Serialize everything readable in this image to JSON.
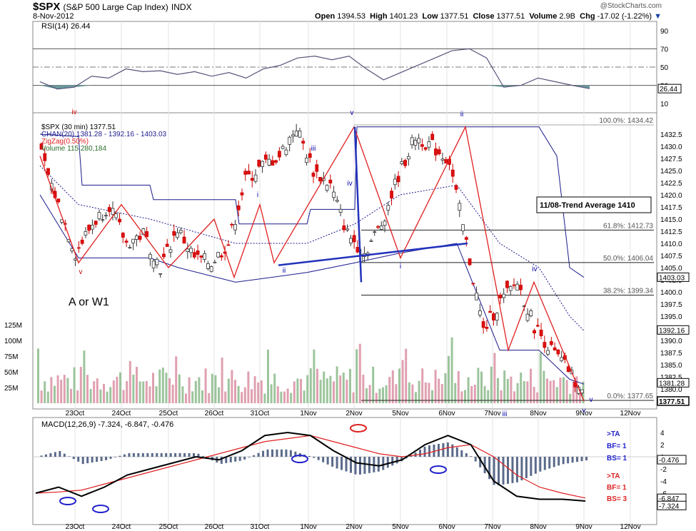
{
  "header": {
    "ticker": "$SPX",
    "name": "(S&P 500 Large Cap Index)",
    "exchange": "INDX",
    "date": "8-Nov-2012",
    "open_label": "Open",
    "open": "1394.53",
    "high_label": "High",
    "high": "1401.23",
    "low_label": "Low",
    "low": "1377.51",
    "close_label": "Close",
    "close": "1377.51",
    "volume_label": "Volume",
    "volume": "2.9B",
    "chg_label": "Chg",
    "chg": "-17.02 (-1.22%)",
    "chg_arrow": "▼",
    "logo": "@StockCharts.com"
  },
  "rsi": {
    "label": "RSI(14) 26.44",
    "current": "26.44",
    "ticks": [
      "90",
      "70",
      "50",
      "30",
      "10"
    ]
  },
  "price": {
    "legend": [
      "$SPX (30 min) 1377.51",
      "CHAN(20) 1381.28 - 1392.16 - 1403.03",
      "ZigZag(0.50%)",
      "Volume 115,280,184"
    ],
    "legend_colors": [
      "#000000",
      "#1a1a8c",
      "#e02020",
      "#2a6e2a"
    ],
    "y_ticks": [
      "1432.5",
      "1430.0",
      "1427.5",
      "1425.0",
      "1422.5",
      "1420.0",
      "1417.5",
      "1415.0",
      "1412.5",
      "1410.0",
      "1407.5",
      "1405.0",
      "1402.5",
      "1400.0",
      "1397.5",
      "1395.0",
      "1392.5",
      "1390.0",
      "1387.5",
      "1385.0",
      "1382.5",
      "1380.0"
    ],
    "price_tags": [
      "1403.03",
      "1392.16",
      "1381.28",
      "1377.51"
    ],
    "vol_ticks": [
      "125M",
      "100M",
      "75M",
      "50M",
      "25M"
    ],
    "fib_levels": [
      {
        "label": "100.0%: 1434.42",
        "price": 1434.42
      },
      {
        "label": "61.8%: 1412.73",
        "price": 1412.73
      },
      {
        "label": "50.0%: 1406.04",
        "price": 1406.04
      },
      {
        "label": "38.2%: 1399.34",
        "price": 1399.34
      },
      {
        "label": "0.0%: 1377.65",
        "price": 1377.65
      }
    ],
    "trend_note": "11/08-Trend Average 1410",
    "wave_text": "A or W1",
    "wave_labels": [
      "iv",
      "iii",
      "v",
      "i",
      "ii",
      "iii",
      "iv",
      "v",
      "i",
      "ii",
      "iv",
      "v",
      "iii",
      "v"
    ],
    "x_labels": [
      "23Oct",
      "24Oct",
      "25Oct",
      "26Oct",
      "31Oct",
      "1Nov",
      "2Nov",
      "5Nov",
      "6Nov",
      "7Nov",
      "8Nov",
      "9Nov",
      "12Nov"
    ]
  },
  "macd": {
    "label": "MACD(12,26,9) -7.324, -6.847, -0.476",
    "ticks": [
      "4",
      "2",
      "0",
      "-2",
      "-4",
      "-6"
    ],
    "tags": [
      "-0.476",
      "-6.847",
      "-7.324"
    ],
    "notes_blue": [
      ">TA",
      "BF= 1",
      "BS= 1"
    ],
    "notes_red": [
      ">TA",
      "BF= 1",
      "BS= 3"
    ],
    "x_labels": [
      "23Oct",
      "24Oct",
      "25Oct",
      "26Oct",
      "31Oct",
      "1Nov",
      "2Nov",
      "5Nov",
      "6Nov",
      "7Nov",
      "8Nov",
      "9Nov",
      "12Nov"
    ]
  },
  "chart_data": {
    "type": "line",
    "title": "$SPX (S&P 500 Large Cap Index) INDX",
    "series_name": "$SPX (30 min)",
    "categories": [
      "23Oct",
      "24Oct",
      "25Oct",
      "26Oct",
      "31Oct",
      "1Nov",
      "2Nov",
      "5Nov",
      "6Nov",
      "7Nov",
      "8Nov"
    ],
    "close_path": [
      1428,
      1418,
      1408,
      1414,
      1418,
      1410,
      1412,
      1405,
      1413,
      1407,
      1406,
      1410,
      1423,
      1426,
      1428,
      1434,
      1425,
      1422,
      1412,
      1408,
      1414,
      1424,
      1432,
      1430,
      1427,
      1410,
      1392,
      1398,
      1402,
      1393,
      1388,
      1384,
      1377.51
    ],
    "ylim": [
      1377.5,
      1435
    ],
    "rsi_path": [
      34,
      26,
      28,
      40,
      38,
      48,
      45,
      46,
      42,
      45,
      40,
      44,
      38,
      48,
      52,
      60,
      62,
      58,
      62,
      48,
      36,
      44,
      52,
      60,
      68,
      70,
      60,
      28,
      30,
      38,
      34,
      30,
      26.44
    ],
    "macd_line": [
      -6,
      -5,
      -6.5,
      -5,
      -3,
      -2,
      -1,
      0,
      -0.5,
      1,
      3.5,
      4,
      3.5,
      1,
      -1,
      -1.5,
      -0.5,
      2,
      3.5,
      2,
      -4,
      -6.5,
      -7,
      -7,
      -7.3
    ],
    "signal_line": [
      -6,
      -5.8,
      -5.5,
      -4.5,
      -3.5,
      -2.5,
      -1.5,
      -0.5,
      0.5,
      1.5,
      2.5,
      3,
      3.5,
      2.5,
      1.5,
      0.5,
      0,
      0.5,
      1.5,
      2,
      0,
      -3,
      -5,
      -6,
      -6.8
    ]
  }
}
